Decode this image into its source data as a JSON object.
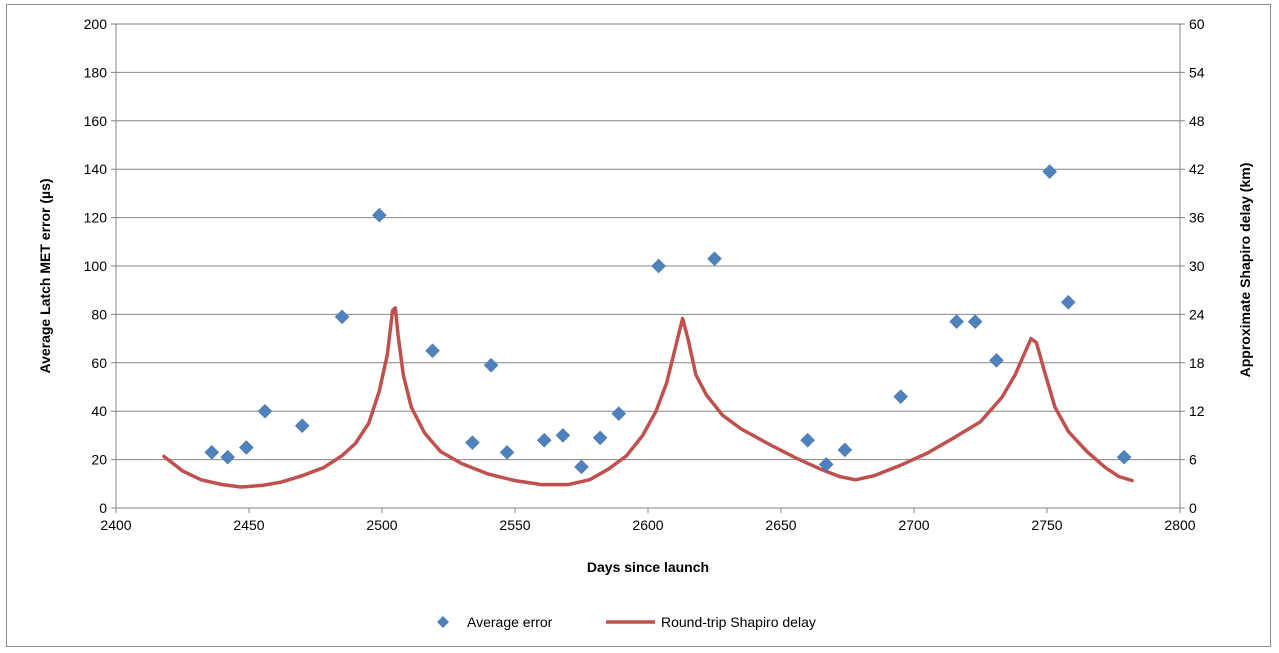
{
  "chart_data": {
    "type": "scatter",
    "title": "",
    "xlabel": "Days since launch",
    "ylabel": "Average Latch MET error (µs)",
    "y2label": "Approximate Shapiro delay (km)",
    "xlim": [
      2400,
      2800
    ],
    "ylim": [
      0,
      200
    ],
    "y2lim": [
      0,
      60
    ],
    "x_ticks": [
      2400,
      2450,
      2500,
      2550,
      2600,
      2650,
      2700,
      2750,
      2800
    ],
    "y_ticks": [
      0,
      20,
      40,
      60,
      80,
      100,
      120,
      140,
      160,
      180,
      200
    ],
    "y2_ticks": [
      0,
      6,
      12,
      18,
      24,
      30,
      36,
      42,
      48,
      54,
      60
    ],
    "grid": true,
    "legend_position": "bottom",
    "series": [
      {
        "name": "Average error",
        "type": "scatter",
        "axis": "left",
        "color": "#4F81BD",
        "marker": "diamond",
        "points": [
          [
            2436,
            23
          ],
          [
            2442,
            21
          ],
          [
            2449,
            25
          ],
          [
            2456,
            40
          ],
          [
            2470,
            34
          ],
          [
            2485,
            79
          ],
          [
            2499,
            121
          ],
          [
            2519,
            65
          ],
          [
            2534,
            27
          ],
          [
            2541,
            59
          ],
          [
            2547,
            23
          ],
          [
            2561,
            28
          ],
          [
            2568,
            30
          ],
          [
            2575,
            17
          ],
          [
            2582,
            29
          ],
          [
            2589,
            39
          ],
          [
            2604,
            100
          ],
          [
            2625,
            103
          ],
          [
            2660,
            28
          ],
          [
            2667,
            18
          ],
          [
            2674,
            24
          ],
          [
            2695,
            46
          ],
          [
            2716,
            77
          ],
          [
            2723,
            77
          ],
          [
            2731,
            61
          ],
          [
            2751,
            139
          ],
          [
            2758,
            85
          ],
          [
            2779,
            21
          ]
        ]
      },
      {
        "name": "Round-trip Shapiro delay",
        "type": "line",
        "axis": "right",
        "color": "#C0504D",
        "points": [
          [
            2418,
            6.4
          ],
          [
            2425,
            4.6
          ],
          [
            2432,
            3.5
          ],
          [
            2440,
            2.9
          ],
          [
            2447,
            2.6
          ],
          [
            2455,
            2.8
          ],
          [
            2462,
            3.2
          ],
          [
            2470,
            4.0
          ],
          [
            2478,
            5.0
          ],
          [
            2485,
            6.5
          ],
          [
            2490,
            8.0
          ],
          [
            2495,
            10.5
          ],
          [
            2499,
            14.5
          ],
          [
            2502,
            19.0
          ],
          [
            2504,
            24.5
          ],
          [
            2505,
            24.8
          ],
          [
            2506,
            21.5
          ],
          [
            2508,
            16.5
          ],
          [
            2511,
            12.5
          ],
          [
            2516,
            9.3
          ],
          [
            2522,
            7.0
          ],
          [
            2530,
            5.5
          ],
          [
            2540,
            4.2
          ],
          [
            2550,
            3.4
          ],
          [
            2560,
            2.9
          ],
          [
            2570,
            2.9
          ],
          [
            2578,
            3.5
          ],
          [
            2585,
            4.8
          ],
          [
            2592,
            6.5
          ],
          [
            2598,
            9.0
          ],
          [
            2603,
            12.0
          ],
          [
            2607,
            15.5
          ],
          [
            2610,
            19.5
          ],
          [
            2613,
            23.5
          ],
          [
            2615,
            21.0
          ],
          [
            2618,
            16.5
          ],
          [
            2622,
            14.0
          ],
          [
            2628,
            11.5
          ],
          [
            2635,
            9.8
          ],
          [
            2645,
            8.0
          ],
          [
            2655,
            6.3
          ],
          [
            2665,
            4.8
          ],
          [
            2672,
            3.9
          ],
          [
            2678,
            3.5
          ],
          [
            2685,
            4.0
          ],
          [
            2695,
            5.3
          ],
          [
            2705,
            6.8
          ],
          [
            2715,
            8.7
          ],
          [
            2725,
            10.7
          ],
          [
            2733,
            13.7
          ],
          [
            2738,
            16.5
          ],
          [
            2742,
            19.5
          ],
          [
            2744,
            21.0
          ],
          [
            2746,
            20.5
          ],
          [
            2749,
            17.0
          ],
          [
            2753,
            12.5
          ],
          [
            2758,
            9.5
          ],
          [
            2765,
            7.0
          ],
          [
            2772,
            5.0
          ],
          [
            2777,
            3.9
          ],
          [
            2782,
            3.4
          ]
        ]
      }
    ]
  }
}
